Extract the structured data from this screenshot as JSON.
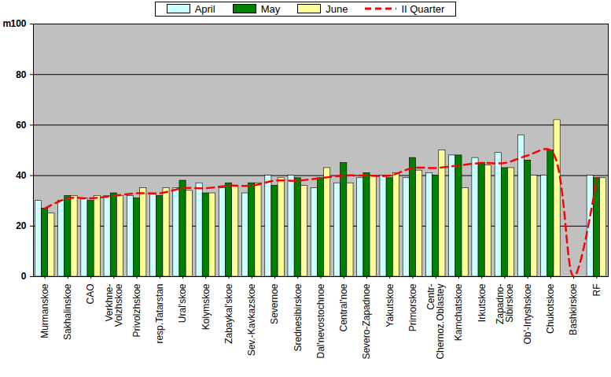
{
  "chart_data": {
    "type": "bar",
    "y_label": "m",
    "categories": [
      "Murmanskoe",
      "Sakhalinskoe",
      "CAO",
      "Verkhne-\nVolzhskoe",
      "Privolzhskoe",
      "resp.Tatarstan",
      "Ural'skoe",
      "Kolymskoe",
      "Zabaykal'skoe",
      "Sev.-Kavkazskoe",
      "Severnoe",
      "Srednesibirskoe",
      "Dal'nevostochnoe",
      "Central'noe",
      "Severo-Zapadnoe",
      "Yakutskoe",
      "Primorskoe",
      "Centr-\nChernoz.Oblastey",
      "Kamchatskoe",
      "Irkutskoe",
      "Zapadno-\nSibirskoe",
      "Ob'-Irtyshskoe",
      "Chukotskoe",
      "Bashkirskoe",
      "RF"
    ],
    "series": [
      {
        "name": "April",
        "type": "bar",
        "color": "#ccffff",
        "values": [
          30,
          30,
          31,
          32,
          32,
          33,
          35,
          37,
          35,
          33,
          40,
          40,
          35,
          37,
          39,
          40,
          39,
          41,
          48,
          47,
          49,
          56,
          40,
          null,
          40
        ]
      },
      {
        "name": "May",
        "type": "bar",
        "color": "#008000",
        "values": [
          27,
          32,
          30,
          33,
          31,
          32,
          38,
          33,
          37,
          37,
          36,
          39,
          39,
          45,
          41,
          39,
          47,
          40,
          48,
          45,
          43,
          46,
          50,
          null,
          39
        ]
      },
      {
        "name": "June",
        "type": "bar",
        "color": "#ffff99",
        "values": [
          25,
          32,
          32,
          32,
          35,
          35,
          34,
          33,
          36,
          37,
          39,
          36,
          43,
          37,
          40,
          41,
          42,
          50,
          35,
          44,
          43,
          40,
          62,
          null,
          39
        ]
      },
      {
        "name": "II Quarter",
        "type": "line",
        "color": "#ff0000",
        "line_style": "dashed",
        "values": [
          27,
          31,
          31,
          32,
          33,
          33,
          35,
          35,
          36,
          36,
          38,
          38,
          39,
          40,
          40,
          40,
          43,
          43,
          44,
          45,
          45,
          48,
          50,
          0,
          39
        ]
      }
    ],
    "ylim": [
      0,
      100
    ],
    "yticks": [
      0,
      20,
      40,
      60,
      80,
      100
    ],
    "grid": true,
    "legend": "top"
  }
}
